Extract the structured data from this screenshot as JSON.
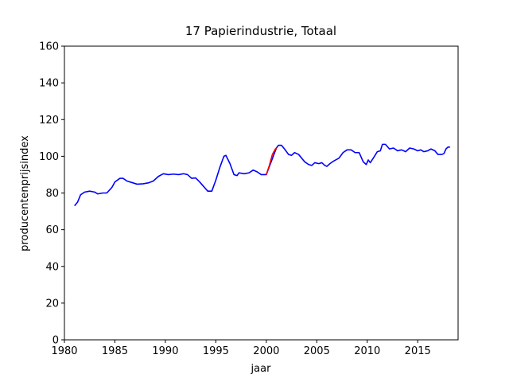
{
  "chart_data": {
    "type": "line",
    "title": "17 Papierindustrie, Totaal",
    "xlabel": "jaar",
    "ylabel": "producentenprijsindex",
    "xlim": [
      1980,
      2019
    ],
    "ylim": [
      0,
      160
    ],
    "xticks": [
      1980,
      1985,
      1990,
      1995,
      2000,
      2005,
      2010,
      2015
    ],
    "yticks": [
      0,
      20,
      40,
      60,
      80,
      100,
      120,
      140,
      160
    ],
    "series": [
      {
        "color": "#0000ff",
        "x": [
          1981.0,
          1981.3,
          1981.6,
          1982.0,
          1982.5,
          1983.0,
          1983.3,
          1983.8,
          1984.2,
          1984.7,
          1985.0,
          1985.5,
          1985.8,
          1986.2,
          1986.8,
          1987.2,
          1987.8,
          1988.3,
          1988.8,
          1989.3,
          1989.8,
          1990.3,
          1990.8,
          1991.3,
          1991.8,
          1992.2,
          1992.6,
          1993.0,
          1993.4,
          1993.8,
          1994.2,
          1994.6,
          1995.0,
          1995.4,
          1995.8,
          1996.0,
          1996.4,
          1996.8,
          1997.1,
          1997.3,
          1997.8,
          1998.3,
          1998.7,
          1999.1,
          1999.5,
          2000.0,
          2001.0,
          2001.2,
          2001.5,
          2001.8,
          2002.2,
          2002.5,
          2002.8,
          2003.2,
          2003.5,
          2003.8,
          2004.2,
          2004.5,
          2004.8,
          2005.2,
          2005.5,
          2005.8,
          2006.0,
          2006.3,
          2006.7,
          2007.2,
          2007.6,
          2008.0,
          2008.4,
          2008.8,
          2009.2,
          2009.6,
          2009.9,
          2010.1,
          2010.3,
          2010.6,
          2011.0,
          2011.3,
          2011.5,
          2011.8,
          2012.2,
          2012.6,
          2013.0,
          2013.4,
          2013.8,
          2014.2,
          2014.6,
          2015.0,
          2015.3,
          2015.6,
          2016.0,
          2016.3,
          2016.7,
          2017.0,
          2017.4,
          2017.6,
          2017.8,
          2018.0,
          2018.2
        ],
        "values": [
          73,
          75,
          79,
          80.5,
          81,
          80.5,
          79.5,
          80,
          80,
          83,
          86,
          88,
          88,
          86.5,
          85.5,
          84.8,
          85,
          85.5,
          86.5,
          89,
          90.5,
          90,
          90.3,
          90,
          90.5,
          90,
          88,
          88.2,
          86,
          83.5,
          81,
          81,
          87,
          94,
          100,
          100.5,
          96,
          90,
          89.5,
          91,
          90.5,
          91,
          92.5,
          91.5,
          90,
          90,
          104.5,
          106,
          106,
          104,
          101,
          100.5,
          102,
          101,
          99,
          97,
          95.5,
          95,
          96.5,
          96,
          96.5,
          95,
          94.5,
          96,
          97.5,
          99,
          102,
          103.5,
          103.5,
          102,
          102,
          97,
          95.5,
          98,
          96.5,
          99,
          102.5,
          103,
          106.5,
          106.5,
          104,
          104.5,
          103,
          103.5,
          102.5,
          104.5,
          104,
          103,
          103.5,
          102.5,
          103,
          104,
          103,
          101,
          101,
          101.5,
          104,
          105,
          105
        ]
      },
      {
        "color": "#ff0000",
        "x": [
          2000.0,
          2000.3,
          2000.6,
          2000.9,
          2001.0
        ],
        "values": [
          90,
          95,
          101,
          104,
          104.5
        ]
      }
    ]
  }
}
